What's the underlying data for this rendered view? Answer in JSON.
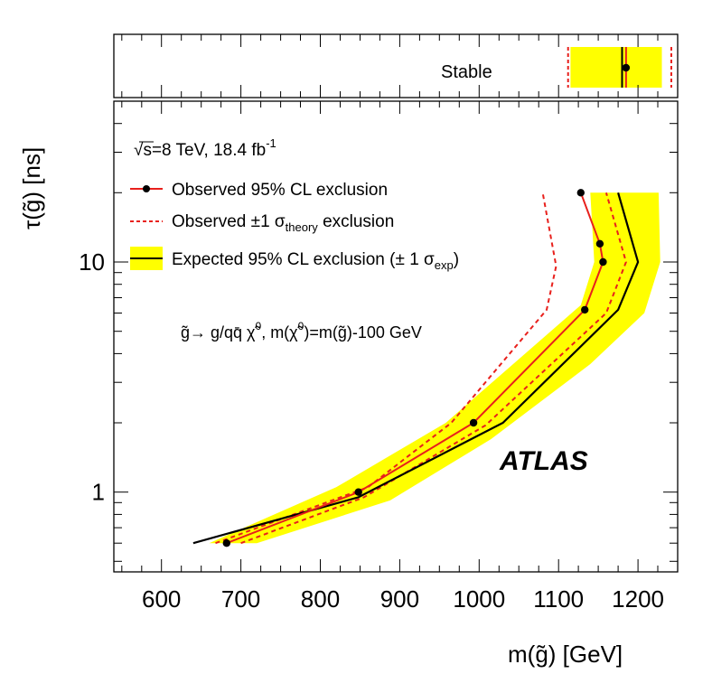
{
  "chart_data": {
    "type": "line",
    "title": "",
    "xlabel": "m(g̃) [GeV]",
    "ylabel": "τ(g̃) [ns]",
    "xlim": [
      540,
      1250
    ],
    "ylim": [
      0.45,
      50
    ],
    "yscale": "log",
    "x_ticks": [
      600,
      700,
      800,
      900,
      1000,
      1100,
      1200
    ],
    "y_ticks": [
      1,
      10
    ],
    "x_tick_labels": [
      "600",
      "700",
      "800",
      "900",
      "1000",
      "1100",
      "1200"
    ],
    "y_tick_labels": [
      "1",
      "10"
    ],
    "experiment_label": "ATLAS",
    "energy_lumi": {
      "prefix": "s=8 TeV, 18.4 fb",
      "sup": "-1"
    },
    "process": {
      "a": "g̃→ g/qq̄ χ̃",
      "b": ", m(χ̃",
      "c": ")=m(g̃)-100 GeV",
      "sup": "0"
    },
    "legend": {
      "position": "top-left",
      "observed": "Observed 95% CL exclusion",
      "theory_main": "Observed ±1 σ",
      "theory_sub": "theory",
      "theory_tail": " exclusion",
      "expected_main": "Expected 95% CL exclusion (± 1 σ",
      "expected_sub": "exp",
      "expected_tail": ")"
    },
    "colors": {
      "observed": "#e8201c",
      "band": "#ffff00",
      "expected": "#000000"
    },
    "series": [
      {
        "name": "observed",
        "points": [
          [
            682,
            0.6
          ],
          [
            848,
            1.0
          ],
          [
            993,
            2.0
          ],
          [
            1133,
            6.2
          ],
          [
            1156,
            10.0
          ],
          [
            1152,
            12.0
          ],
          [
            1128,
            20.0
          ]
        ]
      },
      {
        "name": "observed_theory_upper",
        "points": [
          [
            668,
            0.6
          ],
          [
            860,
            1.05
          ],
          [
            965,
            2.0
          ],
          [
            1085,
            6.2
          ],
          [
            1097,
            9.6
          ],
          [
            1080,
            20.0
          ]
        ]
      },
      {
        "name": "observed_theory_lower",
        "points": [
          [
            700,
            0.6
          ],
          [
            855,
            0.95
          ],
          [
            1008,
            1.95
          ],
          [
            1160,
            6.0
          ],
          [
            1185,
            10.0
          ],
          [
            1160,
            20.0
          ]
        ]
      },
      {
        "name": "expected",
        "points": [
          [
            640,
            0.6
          ],
          [
            848,
            0.95
          ],
          [
            1030,
            2.0
          ],
          [
            1175,
            6.2
          ],
          [
            1200,
            10.0
          ],
          [
            1175,
            20.0
          ]
        ]
      },
      {
        "name": "expected_band",
        "upper": [
          [
            660,
            0.6
          ],
          [
            820,
            1.05
          ],
          [
            958,
            2.0
          ],
          [
            1128,
            6.5
          ],
          [
            1145,
            10.0
          ],
          [
            1140,
            20.0
          ]
        ],
        "lower": [
          [
            720,
            0.6
          ],
          [
            888,
            0.92
          ],
          [
            1015,
            1.7
          ],
          [
            1140,
            3.6
          ],
          [
            1208,
            6.0
          ],
          [
            1228,
            10.0
          ],
          [
            1226,
            20.0
          ]
        ]
      }
    ],
    "stable_panel": {
      "label": "Stable",
      "observed": 1185,
      "band": [
        1115,
        1230
      ],
      "theory": [
        1112,
        1242
      ],
      "expected": 1180
    }
  }
}
